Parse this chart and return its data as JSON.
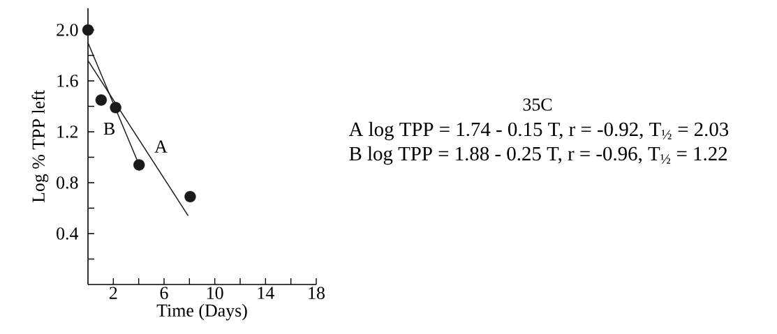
{
  "chart_data": {
    "type": "scatter",
    "title": "35C",
    "xlabel": "Time (Days)",
    "ylabel": "Log % TPP left",
    "xlim": [
      0,
      18
    ],
    "ylim": [
      0,
      2.17
    ],
    "xticks": [
      2,
      {
        "value": 4,
        "label": null
      },
      6,
      {
        "value": 8,
        "label": null
      },
      10,
      {
        "value": 12,
        "label": null
      },
      14,
      {
        "value": 16,
        "label": null
      },
      18
    ],
    "yticks": [
      {
        "value": 0.2,
        "label": null
      },
      0.4,
      {
        "value": 0.6,
        "label": null
      },
      0.8,
      {
        "value": 1.0,
        "label": null
      },
      1.2,
      {
        "value": 1.4,
        "label": null
      },
      1.6,
      {
        "value": 1.8,
        "label": null
      },
      {
        "value": 2.0,
        "label": "2.0"
      }
    ],
    "marker": "circle",
    "series": [
      {
        "color": "#1a1a1a",
        "x": [
          0,
          1.04,
          2.18,
          4.03,
          8.06
        ],
        "values": [
          2.0,
          1.45,
          1.39,
          0.94,
          0.69
        ]
      },
      {
        "type": "line",
        "name": "A",
        "color": "#1a1a1a",
        "marker": "none",
        "x": [
          0,
          7.9
        ],
        "values": [
          1.76,
          0.54
        ]
      },
      {
        "type": "line",
        "name": "B",
        "color": "#1a1a1a",
        "marker": "none",
        "x": [
          0,
          4.03
        ],
        "values": [
          1.9,
          0.94
        ]
      }
    ],
    "annotations": [
      "A  log TPP = 1.74 - 0.15 T,  r = -0.92,  T$_{½}$ = 2.03",
      "B  log TPP = 1.88 - 0.25 T,  r = -0.96,  T$_{½}$ = 1.22"
    ]
  }
}
